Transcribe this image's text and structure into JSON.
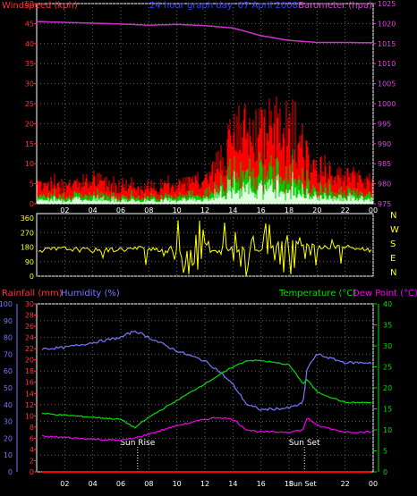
{
  "panel1": {
    "title": "24 hour graph day: 07 April 2008",
    "left_label": "Windspeed (kph)",
    "right_label": "Barometer (hpa)",
    "left_ticks": [
      "0",
      "5",
      "10",
      "15",
      "20",
      "25",
      "30",
      "35",
      "40",
      "45",
      "50"
    ],
    "right_ticks": [
      "975",
      "980",
      "985",
      "990",
      "995",
      "1000",
      "1005",
      "1010",
      "1015",
      "1020",
      "1025"
    ],
    "x_ticks": [
      "02",
      "04",
      "06",
      "08",
      "10",
      "12",
      "14",
      "16",
      "18",
      "20",
      "22",
      "00"
    ]
  },
  "panel2": {
    "left_ticks": [
      "0",
      "90",
      "180",
      "270",
      "360"
    ],
    "direction_letters": [
      "N",
      "W",
      "S",
      "E",
      "N"
    ],
    "x_ticks": [
      "02",
      "04",
      "06",
      "08",
      "10",
      "12",
      "14",
      "16",
      "18",
      "20",
      "22",
      "00"
    ]
  },
  "panel3": {
    "left_label_rain": "Rainfall (mm)",
    "left_label_hum": "Humidity (%)",
    "right_label_temp": "Temperature (°C)",
    "right_label_dew": "Dew Point (°C)",
    "hum_ticks": [
      "0",
      "10",
      "20",
      "30",
      "40",
      "50",
      "60",
      "70",
      "80",
      "90",
      "100"
    ],
    "rain_ticks": [
      "0",
      "2",
      "4",
      "6",
      "8",
      "10",
      "12",
      "14",
      "16",
      "18",
      "20",
      "22",
      "24",
      "26",
      "28",
      "30"
    ],
    "temp_ticks": [
      "0",
      "5",
      "10",
      "15",
      "20",
      "25",
      "30",
      "35",
      "40"
    ],
    "x_ticks": [
      "02",
      "04",
      "06",
      "08",
      "10",
      "12",
      "14",
      "16",
      "18",
      "20",
      "22",
      "00"
    ],
    "sunrise_label": "Sun Rise",
    "sunset_label": "Sun Set",
    "sunset_axis_label": "Sun Set"
  },
  "chart_data": [
    {
      "type": "line",
      "title": "24 hour graph day: 07 April 2008",
      "x": [
        0,
        2,
        4,
        6,
        8,
        10,
        12,
        14,
        16,
        18,
        20,
        22,
        24
      ],
      "series": [
        {
          "name": "Windspeed (kph)",
          "values": [
            5,
            4,
            5,
            4,
            3,
            4,
            5,
            14,
            16,
            16,
            8,
            6,
            5
          ],
          "color": "#ff0000"
        },
        {
          "name": "Barometer (hpa)",
          "values": [
            1020.5,
            1020.3,
            1020.1,
            1019.9,
            1019.6,
            1019.8,
            1019.5,
            1018.9,
            1017,
            1015.8,
            1015.3,
            1015.3,
            1015.2
          ],
          "color": "#cc33cc"
        }
      ],
      "ylim": [
        0,
        50
      ],
      "y2lim": [
        975,
        1025
      ]
    },
    {
      "type": "scatter",
      "series": [
        {
          "name": "Wind direction",
          "values": [
            160,
            170,
            160,
            165,
            175,
            150,
            150,
            150,
            170,
            220,
            180,
            180,
            160
          ],
          "color": "#ffff00"
        }
      ],
      "ylim": [
        0,
        360
      ]
    },
    {
      "type": "line",
      "x": [
        0,
        2,
        4,
        6,
        7,
        8,
        10,
        12,
        13,
        14,
        15,
        16,
        18,
        19,
        19.3,
        20,
        22,
        24
      ],
      "series": [
        {
          "name": "Humidity (%)",
          "values": [
            73,
            74,
            77,
            80,
            84,
            80,
            72,
            66,
            60,
            52,
            40,
            37,
            38,
            41,
            62,
            70,
            65,
            65
          ],
          "color": "#7777ff"
        },
        {
          "name": "Temperature (°C)",
          "values": [
            14,
            13.5,
            13,
            12.5,
            10.5,
            13,
            17,
            21,
            23,
            25,
            26.5,
            26.5,
            25.5,
            21,
            22,
            19,
            16.5,
            16.5
          ],
          "color": "#00dd00"
        },
        {
          "name": "Dew Point (°C)",
          "values": [
            8.5,
            8.2,
            7.8,
            7.5,
            8,
            9,
            11,
            12.5,
            13,
            12.5,
            10,
            9.5,
            9.5,
            10,
            13,
            11,
            9.5,
            9.5
          ],
          "color": "#ee00ee"
        },
        {
          "name": "Rainfall (mm)",
          "values": [
            0,
            0,
            0,
            0,
            0,
            0,
            0,
            0,
            0,
            0,
            0,
            0,
            0,
            0,
            0,
            0,
            0,
            0
          ],
          "color": "#ff0000"
        }
      ],
      "ylim": [
        0,
        100
      ],
      "y2lim": [
        0,
        40
      ]
    }
  ]
}
